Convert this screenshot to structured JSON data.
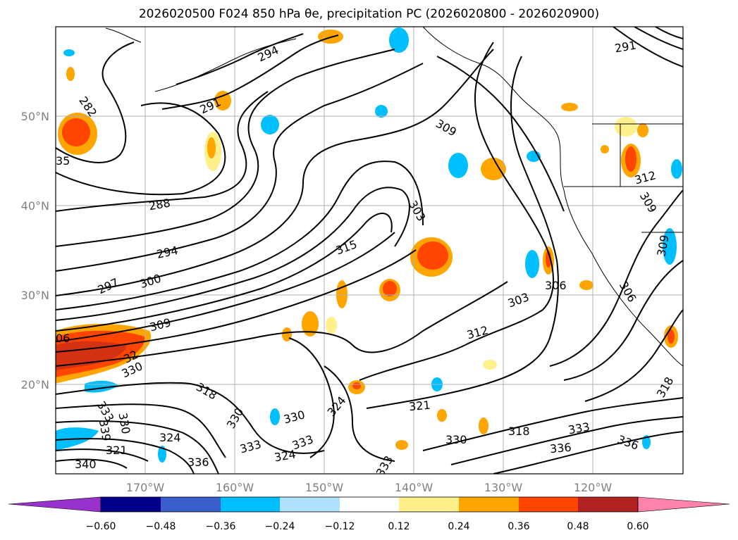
{
  "title": "2026020500 F024 850 hPa θe, precipitation PC (2026020800 - 2026020900)",
  "map": {
    "lat_labels": [
      "50°N",
      "40°N",
      "30°N",
      "20°N"
    ],
    "lon_labels": [
      "170°W",
      "160°W",
      "150°W",
      "140°W",
      "130°W",
      "120°W"
    ],
    "contour_labels": [
      {
        "text": "294",
        "rot": -25
      },
      {
        "text": "291",
        "rot": -25
      },
      {
        "text": "282",
        "rot": 55
      },
      {
        "text": "35",
        "rot": 0
      },
      {
        "text": "288",
        "rot": -10
      },
      {
        "text": "294",
        "rot": -12
      },
      {
        "text": "297",
        "rot": -25
      },
      {
        "text": "300",
        "rot": -18
      },
      {
        "text": "309",
        "rot": -15
      },
      {
        "text": "315",
        "rot": -20
      },
      {
        "text": "303",
        "rot": 60
      },
      {
        "text": "309",
        "rot": 30
      },
      {
        "text": "06",
        "rot": 0
      },
      {
        "text": "330",
        "rot": -25
      },
      {
        "text": "32",
        "rot": -25
      },
      {
        "text": "318",
        "rot": 30
      },
      {
        "text": "330",
        "rot": -60
      },
      {
        "text": "324",
        "rot": -50
      },
      {
        "text": "330",
        "rot": -15
      },
      {
        "text": "333",
        "rot": -20
      },
      {
        "text": "333",
        "rot": -15
      },
      {
        "text": "324",
        "rot": -10
      },
      {
        "text": "333",
        "rot": -60
      },
      {
        "text": "321",
        "rot": -5
      },
      {
        "text": "312",
        "rot": -15
      },
      {
        "text": "303",
        "rot": -20
      },
      {
        "text": "306",
        "rot": 0
      },
      {
        "text": "318",
        "rot": 0
      },
      {
        "text": "330",
        "rot": 0
      },
      {
        "text": "333",
        "rot": -10
      },
      {
        "text": "336",
        "rot": -5
      },
      {
        "text": "336",
        "rot": 20
      },
      {
        "text": "312",
        "rot": -15
      },
      {
        "text": "309",
        "rot": 60
      },
      {
        "text": "309",
        "rot": -80
      },
      {
        "text": "306",
        "rot": 60
      },
      {
        "text": "318",
        "rot": -60
      },
      {
        "text": "291",
        "rot": -10
      },
      {
        "text": "333",
        "rot": 60
      },
      {
        "text": "321",
        "rot": 0
      },
      {
        "text": "324",
        "rot": 0
      },
      {
        "text": "336",
        "rot": 0
      },
      {
        "text": "339",
        "rot": 80
      },
      {
        "text": "340",
        "rot": 0
      },
      {
        "text": "330",
        "rot": 80
      }
    ]
  },
  "colorbar": {
    "colors": [
      "#9932cc",
      "#00008b",
      "#3a5fcd",
      "#00bfff",
      "#b0e2ff",
      "#ffffff",
      "#fff08c",
      "#ffa500",
      "#ff4500",
      "#b22222",
      "#ff82ab"
    ],
    "tick_labels": [
      "−0.60",
      "−0.48",
      "−0.36",
      "−0.24",
      "−0.12",
      "0.12",
      "0.24",
      "0.36",
      "0.48",
      "0.60"
    ]
  }
}
